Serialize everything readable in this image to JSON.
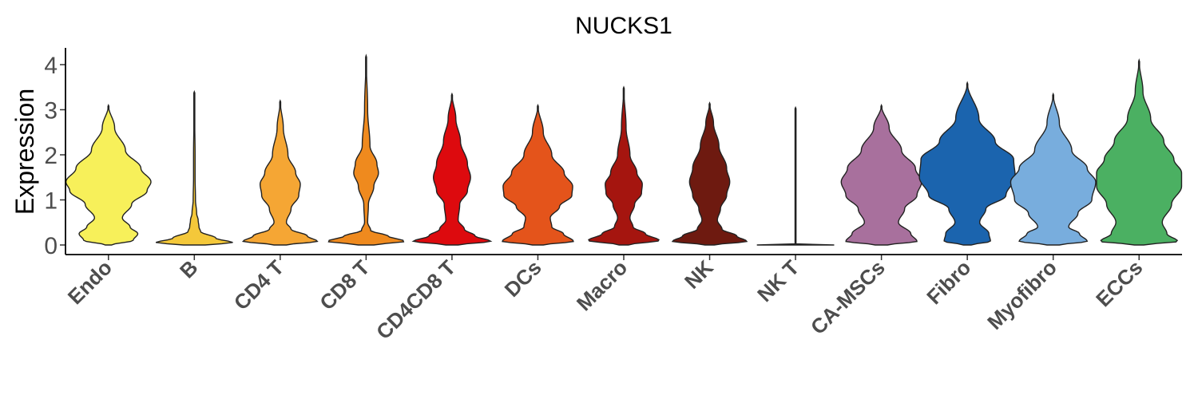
{
  "chart_data": {
    "type": "violin",
    "title": "NUCKS1",
    "xlabel": "",
    "ylabel": "Expression",
    "ylim": [
      -0.2,
      4.3
    ],
    "yticks": [
      0,
      1,
      2,
      3,
      4
    ],
    "grid": false,
    "legend": "none",
    "categories": [
      "Endo",
      "B",
      "CD4 T",
      "CD8 T",
      "CD4CD8 T",
      "DCs",
      "Macro",
      "NK",
      "NK T",
      "CA-MSCs",
      "Fibro",
      "Myofibro",
      "ECCs"
    ],
    "colors": [
      "#f7f05a",
      "#f4c83a",
      "#f5a634",
      "#ef8a1e",
      "#dd0a0e",
      "#e4541b",
      "#a5150f",
      "#6e1a10",
      "#1a1a1a",
      "#a8709d",
      "#1b64ae",
      "#78addd",
      "#4bb062"
    ],
    "series": [
      {
        "name": "Endo",
        "max": 3.1,
        "density": [
          [
            0,
            0.04
          ],
          [
            0.1,
            0.32
          ],
          [
            0.25,
            0.38
          ],
          [
            0.4,
            0.28
          ],
          [
            0.6,
            0.18
          ],
          [
            0.9,
            0.3
          ],
          [
            1.2,
            0.5
          ],
          [
            1.4,
            0.55
          ],
          [
            1.7,
            0.42
          ],
          [
            2.1,
            0.22
          ],
          [
            2.6,
            0.08
          ],
          [
            3.1,
            0.0
          ]
        ]
      },
      {
        "name": "B",
        "max": 3.4,
        "density": [
          [
            0,
            0.14
          ],
          [
            0.05,
            0.5
          ],
          [
            0.15,
            0.28
          ],
          [
            0.3,
            0.08
          ],
          [
            0.4,
            0.06
          ],
          [
            0.55,
            0.05
          ],
          [
            0.7,
            0.03
          ],
          [
            1.0,
            0.015
          ],
          [
            1.5,
            0.01
          ],
          [
            2.0,
            0.01
          ],
          [
            2.8,
            0.005
          ],
          [
            3.4,
            0.0
          ]
        ]
      },
      {
        "name": "CD4 T",
        "max": 3.2,
        "density": [
          [
            0,
            0.08
          ],
          [
            0.08,
            0.48
          ],
          [
            0.2,
            0.35
          ],
          [
            0.35,
            0.14
          ],
          [
            0.5,
            0.08
          ],
          [
            0.8,
            0.14
          ],
          [
            1.1,
            0.24
          ],
          [
            1.35,
            0.26
          ],
          [
            1.6,
            0.2
          ],
          [
            2.0,
            0.1
          ],
          [
            2.6,
            0.04
          ],
          [
            3.2,
            0.0
          ]
        ]
      },
      {
        "name": "CD8 T",
        "max": 4.2,
        "density": [
          [
            0,
            0.1
          ],
          [
            0.08,
            0.5
          ],
          [
            0.2,
            0.28
          ],
          [
            0.32,
            0.06
          ],
          [
            0.5,
            0.02
          ],
          [
            0.9,
            0.03
          ],
          [
            1.3,
            0.1
          ],
          [
            1.6,
            0.16
          ],
          [
            1.8,
            0.14
          ],
          [
            2.2,
            0.05
          ],
          [
            3.0,
            0.02
          ],
          [
            4.2,
            0.0
          ]
        ]
      },
      {
        "name": "CD4CD8 T",
        "max": 3.35,
        "density": [
          [
            0,
            0.08
          ],
          [
            0.08,
            0.5
          ],
          [
            0.2,
            0.3
          ],
          [
            0.35,
            0.16
          ],
          [
            0.55,
            0.08
          ],
          [
            0.9,
            0.1
          ],
          [
            1.2,
            0.2
          ],
          [
            1.5,
            0.24
          ],
          [
            1.8,
            0.2
          ],
          [
            2.3,
            0.11
          ],
          [
            2.8,
            0.05
          ],
          [
            3.35,
            0.0
          ]
        ]
      },
      {
        "name": "DCs",
        "max": 3.1,
        "density": [
          [
            0,
            0.07
          ],
          [
            0.08,
            0.46
          ],
          [
            0.25,
            0.33
          ],
          [
            0.4,
            0.18
          ],
          [
            0.6,
            0.16
          ],
          [
            0.85,
            0.28
          ],
          [
            1.1,
            0.44
          ],
          [
            1.3,
            0.45
          ],
          [
            1.6,
            0.34
          ],
          [
            2.0,
            0.18
          ],
          [
            2.5,
            0.07
          ],
          [
            3.1,
            0.0
          ]
        ]
      },
      {
        "name": "Macro",
        "max": 3.5,
        "density": [
          [
            0,
            0.06
          ],
          [
            0.1,
            0.46
          ],
          [
            0.25,
            0.28
          ],
          [
            0.4,
            0.12
          ],
          [
            0.6,
            0.08
          ],
          [
            0.9,
            0.14
          ],
          [
            1.15,
            0.23
          ],
          [
            1.35,
            0.24
          ],
          [
            1.6,
            0.17
          ],
          [
            2.0,
            0.08
          ],
          [
            2.6,
            0.03
          ],
          [
            3.5,
            0.0
          ]
        ]
      },
      {
        "name": "NK",
        "max": 3.15,
        "density": [
          [
            0,
            0.06
          ],
          [
            0.08,
            0.48
          ],
          [
            0.2,
            0.35
          ],
          [
            0.35,
            0.16
          ],
          [
            0.55,
            0.1
          ],
          [
            0.8,
            0.14
          ],
          [
            1.1,
            0.22
          ],
          [
            1.4,
            0.26
          ],
          [
            1.7,
            0.22
          ],
          [
            2.2,
            0.12
          ],
          [
            2.7,
            0.05
          ],
          [
            3.15,
            0.0
          ]
        ]
      },
      {
        "name": "NK T",
        "max": 3.05,
        "density": [
          [
            0,
            0.5
          ],
          [
            0.01,
            0.0
          ],
          [
            3.05,
            0.0
          ]
        ]
      },
      {
        "name": "CA-MSCs",
        "max": 3.1,
        "density": [
          [
            0,
            0.08
          ],
          [
            0.08,
            0.46
          ],
          [
            0.25,
            0.38
          ],
          [
            0.5,
            0.22
          ],
          [
            0.8,
            0.3
          ],
          [
            1.1,
            0.46
          ],
          [
            1.4,
            0.52
          ],
          [
            1.7,
            0.44
          ],
          [
            2.1,
            0.26
          ],
          [
            2.6,
            0.1
          ],
          [
            3.1,
            0.0
          ]
        ]
      },
      {
        "name": "Fibro",
        "max": 3.6,
        "density": [
          [
            0,
            0.05
          ],
          [
            0.08,
            0.3
          ],
          [
            0.25,
            0.28
          ],
          [
            0.5,
            0.16
          ],
          [
            0.8,
            0.24
          ],
          [
            1.1,
            0.5
          ],
          [
            1.5,
            0.62
          ],
          [
            1.9,
            0.6
          ],
          [
            2.3,
            0.36
          ],
          [
            2.8,
            0.15
          ],
          [
            3.6,
            0.0
          ]
        ]
      },
      {
        "name": "Myofibro",
        "max": 3.35,
        "density": [
          [
            0,
            0.08
          ],
          [
            0.08,
            0.44
          ],
          [
            0.25,
            0.34
          ],
          [
            0.4,
            0.2
          ],
          [
            0.7,
            0.32
          ],
          [
            1.0,
            0.5
          ],
          [
            1.4,
            0.55
          ],
          [
            1.7,
            0.44
          ],
          [
            2.1,
            0.24
          ],
          [
            2.7,
            0.08
          ],
          [
            3.35,
            0.0
          ]
        ]
      },
      {
        "name": "ECCs",
        "max": 4.1,
        "density": [
          [
            0,
            0.06
          ],
          [
            0.08,
            0.5
          ],
          [
            0.25,
            0.36
          ],
          [
            0.5,
            0.3
          ],
          [
            0.9,
            0.42
          ],
          [
            1.3,
            0.55
          ],
          [
            1.6,
            0.55
          ],
          [
            1.9,
            0.45
          ],
          [
            2.3,
            0.32
          ],
          [
            2.8,
            0.15
          ],
          [
            3.4,
            0.05
          ],
          [
            4.1,
            0.0
          ]
        ]
      }
    ]
  }
}
